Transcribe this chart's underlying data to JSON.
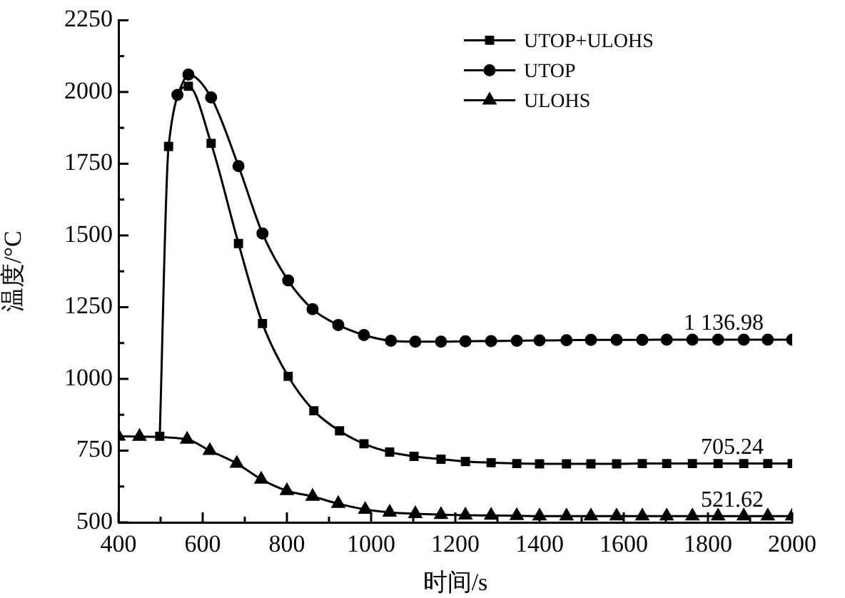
{
  "chart_data": {
    "type": "line",
    "xlabel": "时间/s",
    "ylabel": "温度/°C",
    "xlim": [
      400,
      2000
    ],
    "ylim": [
      500,
      2250
    ],
    "xticks": [
      400,
      {
        "value": 500,
        "label": null
      },
      600,
      {
        "value": 700,
        "label": null
      },
      800,
      {
        "value": 900,
        "label": null
      },
      1000,
      {
        "value": 1100,
        "label": null
      },
      1200,
      {
        "value": 1300,
        "label": null
      },
      1400,
      {
        "value": 1500,
        "label": null
      },
      1600,
      {
        "value": 1700,
        "label": null
      },
      1800,
      {
        "value": 1900,
        "label": null
      },
      2000
    ],
    "yticks": [
      500,
      {
        "value": 625,
        "label": null
      },
      750,
      {
        "value": 875,
        "label": null
      },
      1000,
      {
        "value": 1125,
        "label": null
      },
      1250,
      {
        "value": 1375,
        "label": null
      },
      1500,
      {
        "value": 1625,
        "label": null
      },
      1750,
      {
        "value": 1875,
        "label": null
      },
      2000,
      {
        "value": 2125,
        "label": null
      },
      2250
    ],
    "legend": "top right",
    "grid": false,
    "line_style": "solid",
    "series": [
      {
        "name": "UTOP+ULOHS",
        "color": "#000000",
        "marker": "square",
        "x": [
          498,
          519,
          566,
          620,
          685,
          742,
          803,
          864,
          925,
          983,
          1044,
          1102,
          1166,
          1224,
          1285,
          1346,
          1400,
          1464,
          1522,
          1583,
          1644,
          1702,
          1763,
          1824,
          1885,
          1942,
          2000
        ],
        "values": [
          800,
          1810,
          2020,
          1821,
          1472,
          1193,
          1009,
          889,
          819,
          774,
          745,
          730,
          720,
          712,
          708,
          705,
          704,
          704,
          704,
          704,
          705,
          705,
          705,
          705,
          705,
          705,
          705
        ]
      },
      {
        "name": "UTOP",
        "color": "#000000",
        "marker": "circle",
        "x": [
          540,
          566,
          620,
          685,
          742,
          803,
          861,
          922,
          983,
          1047,
          1105,
          1166,
          1224,
          1285,
          1346,
          1400,
          1464,
          1522,
          1583,
          1644,
          1702,
          1763,
          1824,
          1885,
          1942,
          2000
        ],
        "values": [
          1990,
          2061,
          1981,
          1742,
          1507,
          1343,
          1243,
          1188,
          1153,
          1133,
          1130,
          1130,
          1131,
          1132,
          1133,
          1134,
          1135,
          1136,
          1136,
          1136,
          1137,
          1137,
          1137,
          1137,
          1137,
          1137
        ]
      },
      {
        "name": "ULOHS",
        "color": "#000000",
        "marker": "triangle",
        "x": [
          400,
          450,
          563,
          617,
          681,
          739,
          800,
          861,
          922,
          986,
          1044,
          1105,
          1166,
          1224,
          1285,
          1346,
          1400,
          1464,
          1522,
          1583,
          1644,
          1702,
          1763,
          1824,
          1885,
          1942,
          2000
        ],
        "values": [
          800,
          799,
          789,
          750,
          705,
          650,
          610,
          590,
          565,
          545,
          535,
          530,
          527,
          525,
          524,
          523,
          522,
          522,
          522,
          522,
          522,
          522,
          522,
          522,
          522,
          522,
          522
        ]
      }
    ],
    "annotations": [
      {
        "text": "1 136.98",
        "y": 1136.98
      },
      {
        "text": "705.24",
        "y": 705.24
      },
      {
        "text": "521.62",
        "y": 521.62
      }
    ]
  }
}
